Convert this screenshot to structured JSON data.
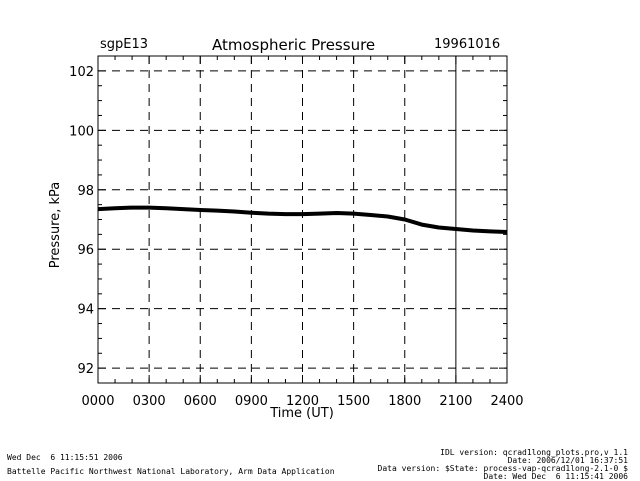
{
  "header": {
    "site": "sgpE13",
    "title": "Atmospheric Pressure",
    "date": "19961016"
  },
  "footer": {
    "left_line1": "Wed Dec  6 11:15:51 2006",
    "left_line2": "Battelle Pacific Northwest National Laboratory, Arm Data Application",
    "right_line1": "IDL version: qcrad1long_plots.pro,v 1.1",
    "right_line2": "Date: 2006/12/01 16:37:51",
    "right_line3": "Data version: $State: process-vap-qcrad1long-2.1-0 $",
    "right_line4": "Date: Wed Dec  6 11:15:41 2006"
  },
  "chart_data": {
    "type": "line",
    "title": "Atmospheric Pressure",
    "xlabel": "Time (UT)",
    "ylabel": "Pressure, kPa",
    "xlim": [
      0,
      24
    ],
    "ylim": [
      91.5,
      102.5
    ],
    "x_ticks": [
      0,
      3,
      6,
      9,
      12,
      15,
      18,
      21,
      24
    ],
    "x_tick_labels": [
      "0000",
      "0300",
      "0600",
      "0900",
      "1200",
      "1500",
      "1800",
      "2100",
      "2400"
    ],
    "y_ticks": [
      92,
      94,
      96,
      98,
      100,
      102
    ],
    "y_tick_labels": [
      "92",
      "94",
      "96",
      "98",
      "100",
      "102"
    ],
    "grid": true,
    "series": [
      {
        "name": "Pressure",
        "x": [
          0,
          1,
          2,
          3,
          4,
          5,
          6,
          7,
          8,
          9,
          10,
          11,
          12,
          13,
          14,
          15,
          16,
          17,
          18,
          19,
          20,
          21,
          22,
          23,
          24
        ],
        "y": [
          97.35,
          97.38,
          97.4,
          97.4,
          97.38,
          97.35,
          97.32,
          97.3,
          97.27,
          97.23,
          97.2,
          97.18,
          97.18,
          97.2,
          97.22,
          97.2,
          97.15,
          97.1,
          97.0,
          96.83,
          96.73,
          96.68,
          96.63,
          96.6,
          96.58
        ]
      }
    ]
  }
}
